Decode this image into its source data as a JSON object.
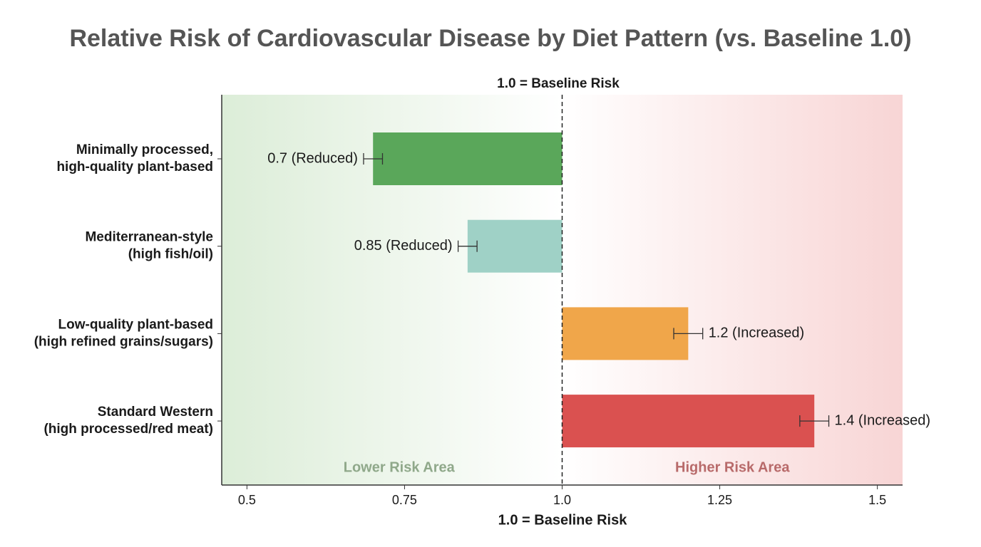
{
  "chart_data": {
    "type": "bar",
    "orientation": "horizontal",
    "title": "Relative Risk of Cardiovascular Disease by Diet Pattern (vs. Baseline 1.0)",
    "annotation_top": "1.0 = Baseline Risk",
    "x_label": "1.0 = Baseline Risk",
    "categories": [
      [
        "Minimally processed,",
        "high-quality plant-based"
      ],
      [
        "Mediterranean-style",
        "(high fish/oil)"
      ],
      [
        "Low-quality plant-based",
        "(high refined grains/sugars)"
      ],
      [
        "Standard Western",
        "(high processed/red meat)"
      ]
    ],
    "values": [
      0.7,
      0.85,
      1.2,
      1.4
    ],
    "errors": [
      0.015,
      0.015,
      0.023,
      0.023
    ],
    "value_labels": [
      "0.7 (Reduced)",
      "0.85 (Reduced)",
      "1.2 (Increased)",
      "1.4 (Increased)"
    ],
    "colors": [
      "#5aa75a",
      "#9fd1c6",
      "#f0a64a",
      "#da5150"
    ],
    "baseline": 1,
    "xlim": [
      0.46,
      1.54
    ],
    "xticks": [
      0.5,
      0.75,
      {
        "value": 1,
        "label": "1.0"
      },
      1.25,
      1.5
    ],
    "regions": [
      "Lower Risk Area",
      "Higher Risk Area"
    ],
    "region_colors": [
      "#dcedd8",
      "#f8d5d5"
    ]
  }
}
